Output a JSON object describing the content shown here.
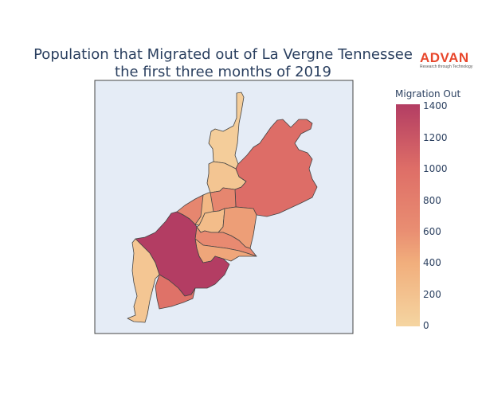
{
  "title": {
    "line1": "Population that Migrated out of La Vergne Tennessee",
    "line2": "the first three months of 2019"
  },
  "logo": {
    "word": "ADVAN",
    "tagline": "Research through Technology",
    "color": "#e8462b"
  },
  "colorbar": {
    "title": "Migration Out",
    "ticks": [
      "0",
      "200",
      "400",
      "600",
      "800",
      "1000",
      "1200",
      "1400"
    ],
    "min": 0,
    "max": 1400,
    "colors": [
      "#f5d5a1",
      "#f1ae7c",
      "#e98e72",
      "#de6e67",
      "#b33d63"
    ]
  },
  "map": {
    "background": "#e5ecf6",
    "regions": [
      {
        "id": "north-tip",
        "value": 80
      },
      {
        "id": "north-mid",
        "value": 160
      },
      {
        "id": "east-large",
        "value": 1000
      },
      {
        "id": "center-north",
        "value": 300
      },
      {
        "id": "center-west",
        "value": 700
      },
      {
        "id": "center-small",
        "value": 250
      },
      {
        "id": "center-east",
        "value": 500
      },
      {
        "id": "center",
        "value": 650
      },
      {
        "id": "center-south",
        "value": 450
      },
      {
        "id": "west-large",
        "value": 1400
      },
      {
        "id": "southwest",
        "value": 150
      },
      {
        "id": "south",
        "value": 950
      }
    ]
  }
}
